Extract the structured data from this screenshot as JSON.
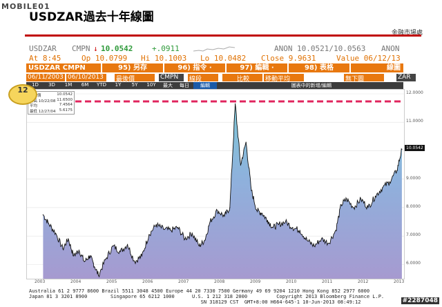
{
  "header": {
    "logo": "MOBILE01",
    "title": "USDZAR過去十年線圖",
    "publisher": "金融市場處"
  },
  "quote": {
    "ticker": "USDZAR",
    "source": "CMPN",
    "arrow": "↓",
    "last": "10.0542",
    "change": "+.0911",
    "bid_ask_label": "ANON",
    "bid_ask": "10.0521/10.0563",
    "anon2": "ANON",
    "at": "At 8:45",
    "op": "Op 10.0799",
    "hi": "Hi 10.1003",
    "lo": "Lo 10.0482",
    "close": "Close 9.9631",
    "value": "Value 06/12/13"
  },
  "toolbar": {
    "instrument": "USDZAR CMPN Curn",
    "menu1": "95) 另存",
    "menu2": "96) 指令 ·",
    "menu3": "97) 編輯 ·",
    "menu4": "98) 表格",
    "menu5": "線圖",
    "date_from": "06/11/2003",
    "date_to": "06/10/2013",
    "field1": "最後價",
    "field2": "CMPN",
    "field3": "線段",
    "field4": "比較",
    "field5": "移動平均",
    "field6": "無下圖",
    "field7": "ZAR",
    "periods": [
      "1D",
      "3D",
      "1M",
      "6M",
      "YTD",
      "1Y",
      "5Y",
      "10Y",
      "最大",
      "每日",
      "編輯",
      "圖表中的新增/編輯"
    ]
  },
  "callout": {
    "number": "12"
  },
  "legend": [
    {
      "label": "最後價",
      "value": "10.0542"
    },
    {
      "label": "最高 10/22/08",
      "value": "11.6500"
    },
    {
      "label": "平均",
      "value": "7.4564"
    },
    {
      "label": "最低 12/27/04",
      "value": "5.6175"
    }
  ],
  "chart_data": {
    "type": "area",
    "title": "USDZAR過去十年線圖",
    "x": [
      2003.45,
      2003.6,
      2003.8,
      2004.0,
      2004.15,
      2004.3,
      2004.45,
      2004.6,
      2004.75,
      2004.85,
      2004.99,
      2005.2,
      2005.4,
      2005.6,
      2005.8,
      2006.0,
      2006.2,
      2006.4,
      2006.6,
      2006.8,
      2007.0,
      2007.2,
      2007.4,
      2007.6,
      2007.8,
      2007.95,
      2008.1,
      2008.3,
      2008.5,
      2008.65,
      2008.8,
      2008.95,
      2009.1,
      2009.25,
      2009.4,
      2009.55,
      2009.7,
      2009.85,
      2010.0,
      2010.2,
      2010.4,
      2010.6,
      2010.8,
      2011.0,
      2011.2,
      2011.4,
      2011.6,
      2011.75,
      2011.9,
      2012.1,
      2012.3,
      2012.5,
      2012.7,
      2012.9,
      2013.1,
      2013.3,
      2013.44
    ],
    "values": [
      7.75,
      7.45,
      7.1,
      6.55,
      6.9,
      6.3,
      6.5,
      6.1,
      6.3,
      6.05,
      5.62,
      6.2,
      6.65,
      6.45,
      6.7,
      6.1,
      6.3,
      7.05,
      7.4,
      7.25,
      7.2,
      7.3,
      6.9,
      7.1,
      6.65,
      6.85,
      7.5,
      7.9,
      7.7,
      8.0,
      11.65,
      9.5,
      10.3,
      8.6,
      7.9,
      7.8,
      7.55,
      7.3,
      7.4,
      7.5,
      7.3,
      7.2,
      6.85,
      6.65,
      6.9,
      6.75,
      7.2,
      8.1,
      8.3,
      8.0,
      8.3,
      8.0,
      8.4,
      8.7,
      8.9,
      9.3,
      10.05
    ],
    "xlabel": "",
    "ylabel": "",
    "ylim": [
      5.5,
      12.0
    ],
    "yticks": [
      "12.0000",
      "11.0000",
      "10.0000",
      "9.0000",
      "8.0000",
      "7.0000",
      "6.0000"
    ],
    "xticks": [
      "2003",
      "2004",
      "2005",
      "2006",
      "2007",
      "2008",
      "2009",
      "2010",
      "2011",
      "2012",
      "2013"
    ],
    "last_label": "10.0542",
    "max_reference": 11.65
  },
  "footer": {
    "line1": "Australia 61 2 9777 8600 Brazil 5511 3048 4500 Europe 44 20 7330 7500 Germany 49 69 9204 1210 Hong Kong 852 2977 6000",
    "line2": "Japan 81 3 3201 8900        Singapore 65 6212 1000      U.S. 1 212 318 2000          Copyright 2013 Bloomberg Finance L.P.",
    "line3": "                                                           SN 318129 CST  GMT+8:00 H664-645-1 10-Jun-2013 08:49:12"
  },
  "watermark": "#2287048"
}
